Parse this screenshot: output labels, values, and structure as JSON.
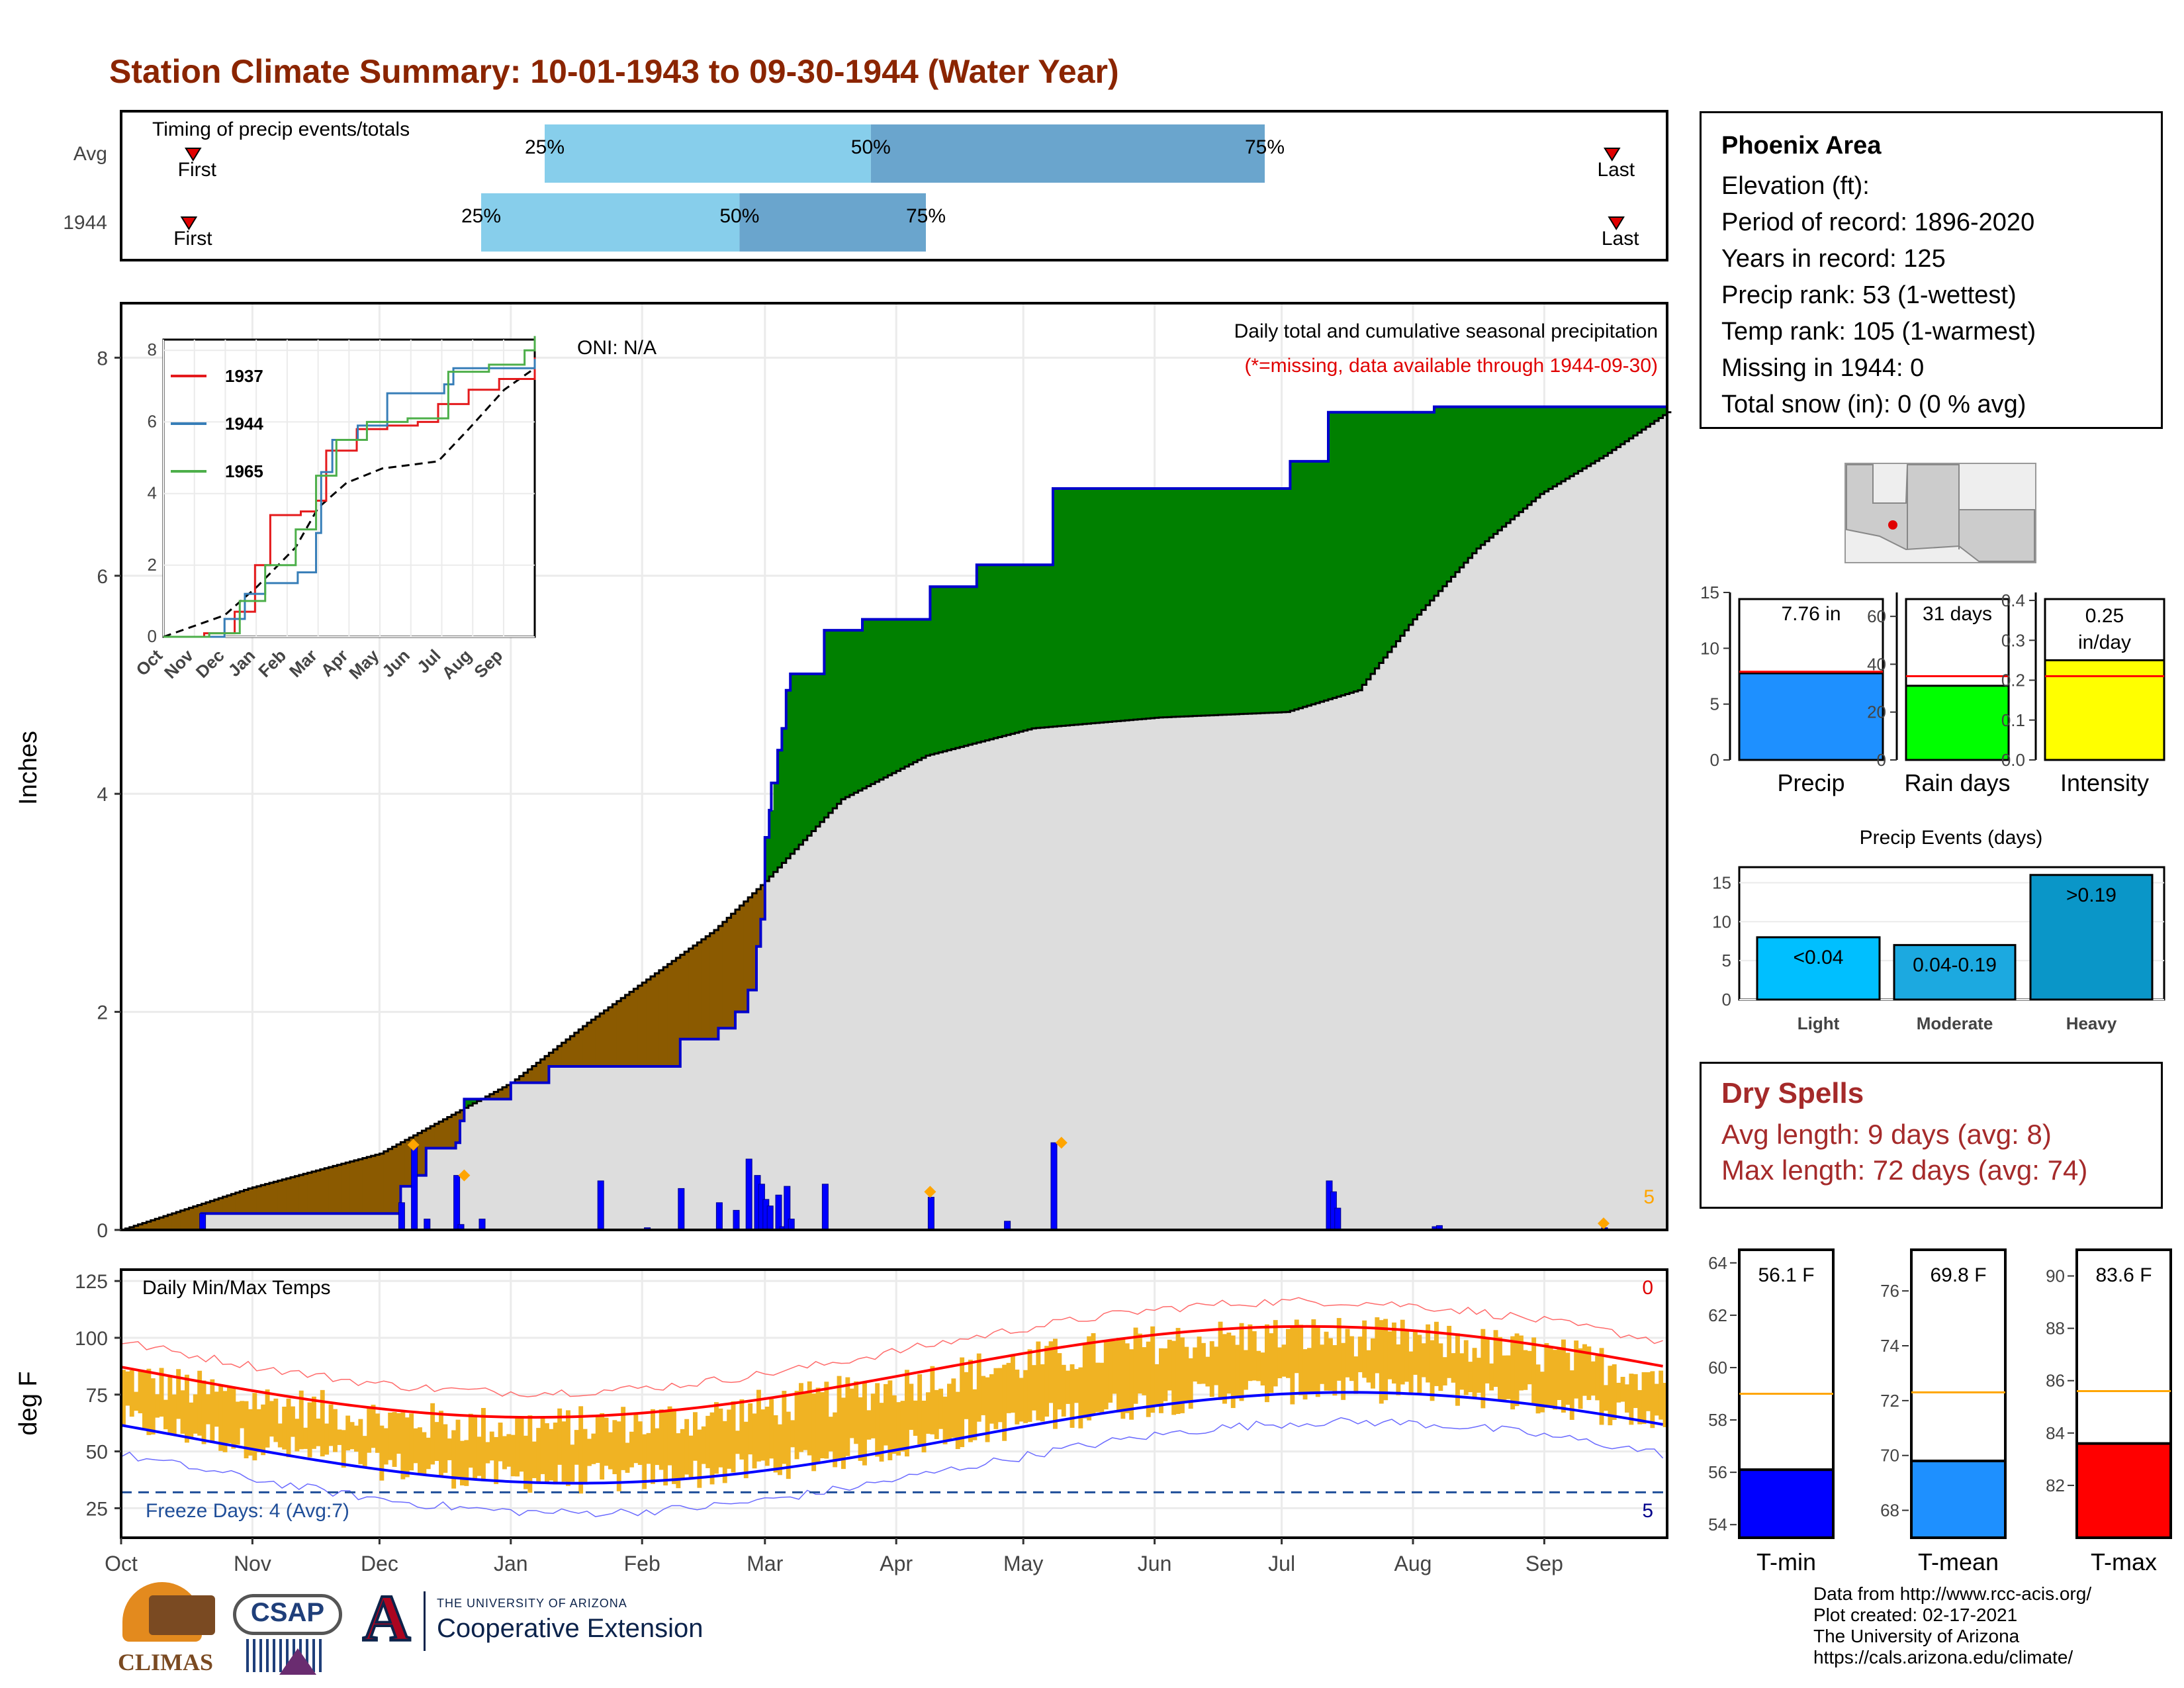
{
  "title": "Station Climate Summary: 10-01-1943 to 09-30-1944 (Water Year)",
  "timing": {
    "label": "Timing of precip events/totals",
    "rows": [
      {
        "name": "Avg",
        "first_label": "First",
        "last_label": "Last",
        "first_day": 17,
        "last_day": 352,
        "p25": 100,
        "p50": 177,
        "p75": 270,
        "p25_label": "25%",
        "p50_label": "50%",
        "p75_label": "75%"
      },
      {
        "name": "1944",
        "first_day": 16,
        "last_day": 353,
        "first_label": "First",
        "last_label": "Last",
        "p25": 85,
        "p50": 146,
        "p75": 190,
        "p25_label": "25%",
        "p50_label": "50%",
        "p75_label": "75%"
      }
    ]
  },
  "main_chart": {
    "ylabel": "Inches",
    "yticks": [
      "0",
      "2",
      "4",
      "6",
      "8"
    ],
    "oni": "ONI: N/A",
    "subtitle": "Daily total and cumulative seasonal precipitation",
    "missing_note": "(*=missing, data available through 1944-09-30)",
    "corner_count": "5",
    "colors": {
      "avg_fill": "#DDDDDD",
      "above": "#008000",
      "below": "#8B5A00",
      "line": "#0000CC",
      "event": "#FFA500"
    }
  },
  "inset": {
    "yticks": [
      "0",
      "2",
      "4",
      "6",
      "8"
    ],
    "xticks": [
      "Oct",
      "Nov",
      "Dec",
      "Jan",
      "Feb",
      "Mar",
      "Apr",
      "May",
      "Jun",
      "Jul",
      "Aug",
      "Sep"
    ],
    "legend": [
      {
        "name": "1937",
        "color": "#E41A1C"
      },
      {
        "name": "1944",
        "color": "#377EB8"
      },
      {
        "name": "1965",
        "color": "#4DAF4A"
      }
    ]
  },
  "temp_chart": {
    "title": "Daily Min/Max Temps",
    "ylabel": "deg F",
    "yticks": [
      "25",
      "50",
      "75",
      "100",
      "125"
    ],
    "freeze_label": "Freeze Days: 4 (Avg:7)",
    "top_count": "0",
    "bottom_count": "5",
    "xticks": [
      "Oct",
      "Nov",
      "Dec",
      "Jan",
      "Feb",
      "Mar",
      "Apr",
      "May",
      "Jun",
      "Jul",
      "Aug",
      "Sep"
    ]
  },
  "station": {
    "name": "Phoenix Area",
    "lines": [
      "Elevation (ft):",
      "Period of record: 1896-2020",
      "Years in record: 125",
      "Precip rank: 53 (1-wettest)",
      "Temp rank: 105 (1-warmest)",
      "Missing in 1944: 0",
      "Total snow (in): 0 (0 % avg)"
    ]
  },
  "precip_bars": [
    {
      "name": "Precip",
      "label": "7.76 in",
      "value": 7.76,
      "avg": 7.9,
      "max": 15,
      "ticks": [
        "0",
        "5",
        "10",
        "15"
      ],
      "color": "#1E90FF"
    },
    {
      "name": "Rain days",
      "label": "31 days",
      "value": 31,
      "avg": 35,
      "max": 70,
      "ticks": [
        "0",
        "20",
        "40",
        "60"
      ],
      "color": "#00FF00"
    },
    {
      "name": "Intensity",
      "label": "0.25 in/day",
      "value": 0.25,
      "avg": 0.21,
      "max": 0.42,
      "ticks": [
        "0.0",
        "0.1",
        "0.2",
        "0.3",
        "0.4"
      ],
      "color": "#FFFF00"
    }
  ],
  "events": {
    "title": "Precip Events (days)",
    "yticks": [
      "0",
      "5",
      "10",
      "15"
    ],
    "bars": [
      {
        "name": "Light",
        "label": "<0.04",
        "value": 8,
        "color": "#00BFFF"
      },
      {
        "name": "Moderate",
        "label": "0.04-0.19",
        "value": 7,
        "color": "#1CA9E0"
      },
      {
        "name": "Heavy",
        "label": ">0.19",
        "value": 16,
        "color": "#0A96C8"
      }
    ]
  },
  "dry_spells": {
    "title": "Dry Spells",
    "avg_length": "Avg length: 9 days (avg: 8)",
    "max_length": "Max length: 72 days (avg: 74)"
  },
  "temp_bars": [
    {
      "name": "T-min",
      "label": "56.1 F",
      "value": 56.1,
      "avg": 59.0,
      "min": 53.5,
      "max": 64.5,
      "ticks": [
        "54",
        "56",
        "58",
        "60",
        "62",
        "64"
      ],
      "color": "#0000FF"
    },
    {
      "name": "T-mean",
      "label": "69.8 F",
      "value": 69.8,
      "avg": 72.3,
      "min": 67,
      "max": 77.5,
      "ticks": [
        "68",
        "70",
        "72",
        "74",
        "76"
      ],
      "color": "#1E90FF"
    },
    {
      "name": "T-max",
      "label": "83.6 F",
      "value": 83.6,
      "avg": 85.6,
      "min": 80,
      "max": 91,
      "ticks": [
        "82",
        "84",
        "86",
        "88",
        "90"
      ],
      "color": "#FF0000"
    }
  ],
  "credits": [
    "Data from http://www.rcc-acis.org/",
    "Plot created: 02-17-2021",
    "The University of Arizona",
    "https://cals.arizona.edu/climate/"
  ],
  "logos": {
    "climas": "CLIMAS",
    "csap": "CSAP",
    "ua_small": "THE UNIVERSITY OF ARIZONA",
    "ua_big": "Cooperative Extension"
  }
}
